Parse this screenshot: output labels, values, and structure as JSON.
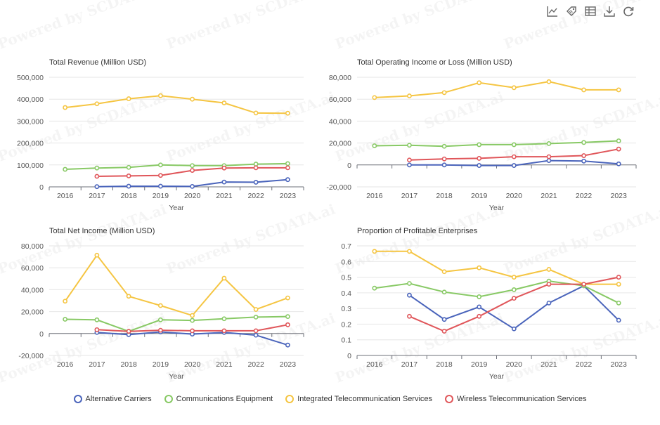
{
  "watermark": "Powered by SCDATA.ai",
  "toolbar": [
    "line-chart-icon",
    "tag-icon",
    "data-view-icon",
    "download-icon",
    "restore-icon"
  ],
  "x_title": "Year",
  "colors": {
    "Alternative Carriers": "#4a64bb",
    "Communications Equipment": "#88c965",
    "Integrated Telecommunication Services": "#f5c542",
    "Wireless Telecommunication Services": "#e0565a"
  },
  "legend": [
    "Alternative Carriers",
    "Communications Equipment",
    "Integrated Telecommunication Services",
    "Wireless Telecommunication Services"
  ],
  "chart_data": [
    {
      "type": "line",
      "title": "Total Revenue (Million USD)",
      "xlabel": "Year",
      "categories": [
        "2016",
        "2017",
        "2018",
        "2019",
        "2020",
        "2021",
        "2022",
        "2023"
      ],
      "ylim": [
        0,
        500000
      ],
      "yticks": [
        0,
        100000,
        200000,
        300000,
        400000,
        500000
      ],
      "ytick_labels": [
        "0",
        "100,000",
        "200,000",
        "300,000",
        "400,000",
        "500,000"
      ],
      "series": [
        {
          "name": "Alternative Carriers",
          "values": [
            null,
            1000,
            3000,
            3000,
            2000,
            22000,
            21000,
            33000
          ]
        },
        {
          "name": "Communications Equipment",
          "values": [
            80000,
            86000,
            89000,
            100000,
            97000,
            97000,
            104000,
            106000
          ]
        },
        {
          "name": "Integrated Telecommunication Services",
          "values": [
            362000,
            379000,
            402000,
            416000,
            400000,
            383000,
            337000,
            336000
          ]
        },
        {
          "name": "Wireless Telecommunication Services",
          "values": [
            null,
            48000,
            50000,
            52000,
            75000,
            86000,
            87000,
            87000
          ]
        }
      ]
    },
    {
      "type": "line",
      "title": "Total Operating Income or Loss (Million USD)",
      "xlabel": "Year",
      "categories": [
        "2016",
        "2017",
        "2018",
        "2019",
        "2020",
        "2021",
        "2022",
        "2023"
      ],
      "ylim": [
        -20000,
        80000
      ],
      "yticks": [
        -20000,
        0,
        20000,
        40000,
        60000,
        80000
      ],
      "ytick_labels": [
        "-20,000",
        "0",
        "20,000",
        "40,000",
        "60,000",
        "80,000"
      ],
      "series": [
        {
          "name": "Alternative Carriers",
          "values": [
            null,
            0,
            0,
            -500,
            -500,
            4000,
            3500,
            1000
          ]
        },
        {
          "name": "Communications Equipment",
          "values": [
            17500,
            18000,
            17000,
            18500,
            18500,
            19500,
            20500,
            22000
          ]
        },
        {
          "name": "Integrated Telecommunication Services",
          "values": [
            61500,
            63000,
            66000,
            75000,
            70500,
            76000,
            68500,
            68500
          ]
        },
        {
          "name": "Wireless Telecommunication Services",
          "values": [
            null,
            4500,
            5500,
            6000,
            7500,
            7500,
            8500,
            14500
          ]
        }
      ]
    },
    {
      "type": "line",
      "title": "Total Net Income (Million USD)",
      "xlabel": "Year",
      "categories": [
        "2016",
        "2017",
        "2018",
        "2019",
        "2020",
        "2021",
        "2022",
        "2023"
      ],
      "ylim": [
        -20000,
        80000
      ],
      "yticks": [
        -20000,
        0,
        20000,
        40000,
        60000,
        80000
      ],
      "ytick_labels": [
        "-20,000",
        "0",
        "20,000",
        "40,000",
        "60,000",
        "80,000"
      ],
      "series": [
        {
          "name": "Alternative Carriers",
          "values": [
            null,
            1000,
            -1000,
            1500,
            -500,
            1000,
            -1500,
            -10500
          ]
        },
        {
          "name": "Communications Equipment",
          "values": [
            13000,
            12500,
            2000,
            12500,
            12000,
            13500,
            15000,
            15500
          ]
        },
        {
          "name": "Integrated Telecommunication Services",
          "values": [
            29500,
            71500,
            34000,
            25500,
            16500,
            50500,
            22000,
            32500
          ]
        },
        {
          "name": "Wireless Telecommunication Services",
          "values": [
            null,
            3500,
            2000,
            3000,
            2500,
            2500,
            2500,
            8000
          ]
        }
      ]
    },
    {
      "type": "line",
      "title": "Proportion of Profitable Enterprises",
      "xlabel": "Year",
      "categories": [
        "2016",
        "2017",
        "2018",
        "2019",
        "2020",
        "2021",
        "2022",
        "2023"
      ],
      "ylim": [
        0,
        0.7
      ],
      "yticks": [
        0,
        0.1,
        0.2,
        0.3,
        0.4,
        0.5,
        0.6,
        0.7
      ],
      "ytick_labels": [
        "0",
        "0.1",
        "0.2",
        "0.3",
        "0.4",
        "0.5",
        "0.6",
        "0.7"
      ],
      "series": [
        {
          "name": "Alternative Carriers",
          "values": [
            null,
            0.385,
            0.23,
            0.31,
            0.17,
            0.335,
            0.445,
            0.225
          ]
        },
        {
          "name": "Communications Equipment",
          "values": [
            0.43,
            0.46,
            0.405,
            0.375,
            0.42,
            0.475,
            0.445,
            0.335
          ]
        },
        {
          "name": "Integrated Telecommunication Services",
          "values": [
            0.665,
            0.665,
            0.535,
            0.56,
            0.5,
            0.55,
            0.455,
            0.455
          ]
        },
        {
          "name": "Wireless Telecommunication Services",
          "values": [
            null,
            0.25,
            0.155,
            0.25,
            0.365,
            0.455,
            0.455,
            0.5
          ]
        }
      ]
    }
  ]
}
